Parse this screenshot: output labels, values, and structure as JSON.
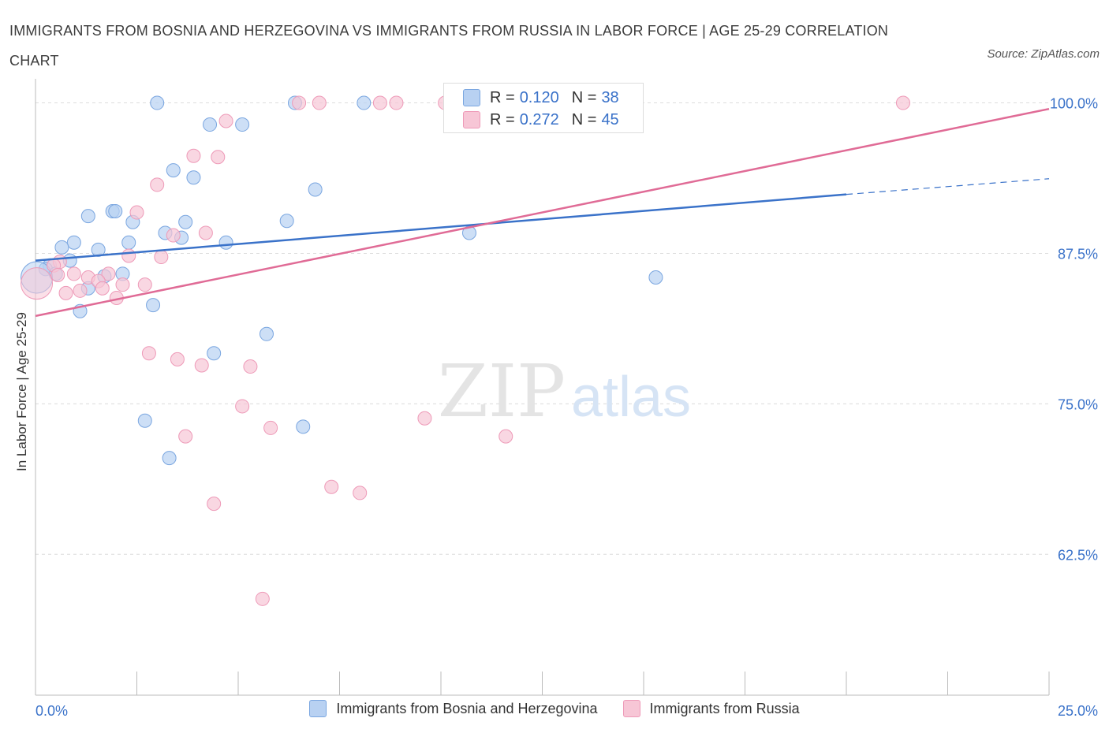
{
  "title": "IMMIGRANTS FROM BOSNIA AND HERZEGOVINA VS IMMIGRANTS FROM RUSSIA IN LABOR FORCE | AGE 25-29 CORRELATION CHART",
  "source": "Source: ZipAtlas.com",
  "watermark": {
    "zip": "ZIP",
    "atlas": "atlas"
  },
  "colors": {
    "blue_fill": "#b8d1f2",
    "blue_stroke": "#7aa6e0",
    "blue_line": "#3a72c9",
    "pink_fill": "#f7c6d6",
    "pink_stroke": "#ee9ab8",
    "pink_line": "#e06b96",
    "axis_label": "#3a72c9",
    "grid": "#dcdcdc"
  },
  "legend": {
    "rows": [
      {
        "r_label": "R =",
        "r_value": "0.120",
        "n_label": "N =",
        "n_value": "38"
      },
      {
        "r_label": "R =",
        "r_value": "0.272",
        "n_label": "N =",
        "n_value": "45"
      }
    ]
  },
  "bottom_legend": [
    "Immigrants from Bosnia and Herzegovina",
    "Immigrants from Russia"
  ],
  "chart_data": {
    "type": "scatter",
    "xlabel": "",
    "ylabel": "In Labor Force | Age 25-29",
    "xlim": [
      0,
      25
    ],
    "ylim": [
      50.8,
      102
    ],
    "x_tick_labels": [
      {
        "value": 0,
        "label": "0.0%"
      },
      {
        "value": 25,
        "label": "25.0%"
      }
    ],
    "y_tick_labels": [
      {
        "value": 100,
        "label": "100.0%"
      },
      {
        "value": 87.5,
        "label": "87.5%"
      },
      {
        "value": 75,
        "label": "75.0%"
      },
      {
        "value": 62.5,
        "label": "62.5%"
      }
    ],
    "grid": true,
    "series": [
      {
        "name": "Immigrants from Bosnia and Herzegovina",
        "trend": {
          "x": [
            0,
            20
          ],
          "y": [
            86.9,
            92.4
          ],
          "extension_x": [
            20,
            25
          ],
          "extension_y": [
            92.4,
            93.7
          ]
        },
        "points": [
          [
            3.0,
            100
          ],
          [
            6.4,
            100
          ],
          [
            8.1,
            100
          ],
          [
            4.3,
            98.2
          ],
          [
            5.1,
            98.2
          ],
          [
            3.4,
            94.4
          ],
          [
            3.9,
            93.8
          ],
          [
            6.9,
            92.8
          ],
          [
            1.3,
            90.6
          ],
          [
            1.9,
            91.0
          ],
          [
            1.97,
            91.0
          ],
          [
            2.4,
            90.1
          ],
          [
            3.7,
            90.1
          ],
          [
            6.2,
            90.2
          ],
          [
            3.2,
            89.2
          ],
          [
            10.7,
            89.2
          ],
          [
            0.95,
            88.4
          ],
          [
            2.3,
            88.4
          ],
          [
            3.6,
            88.8
          ],
          [
            4.7,
            88.4
          ],
          [
            0.65,
            88.0
          ],
          [
            1.55,
            87.8
          ],
          [
            0.85,
            86.9
          ],
          [
            0.35,
            86.5
          ],
          [
            0.25,
            86.2
          ],
          [
            0.5,
            85.8
          ],
          [
            2.15,
            85.8
          ],
          [
            1.7,
            85.6
          ],
          [
            15.3,
            85.5
          ],
          [
            1.3,
            84.6
          ],
          [
            2.9,
            83.2
          ],
          [
            1.1,
            82.7
          ],
          [
            5.7,
            80.8
          ],
          [
            4.4,
            79.2
          ],
          [
            2.7,
            73.6
          ],
          [
            6.6,
            73.1
          ],
          [
            3.3,
            70.5
          ],
          [
            0.03,
            85.5
          ]
        ]
      },
      {
        "name": "Immigrants from Russia",
        "trend": {
          "x": [
            0,
            25
          ],
          "y": [
            82.3,
            99.5
          ]
        },
        "points": [
          [
            6.5,
            100
          ],
          [
            7.0,
            100
          ],
          [
            8.5,
            100
          ],
          [
            8.9,
            100
          ],
          [
            10.1,
            100
          ],
          [
            12.3,
            100
          ],
          [
            12.6,
            100
          ],
          [
            13.7,
            100
          ],
          [
            21.4,
            100
          ],
          [
            4.7,
            98.5
          ],
          [
            3.9,
            95.6
          ],
          [
            4.5,
            95.5
          ],
          [
            3.0,
            93.2
          ],
          [
            2.5,
            90.9
          ],
          [
            4.2,
            89.2
          ],
          [
            3.4,
            89.0
          ],
          [
            2.3,
            87.3
          ],
          [
            3.1,
            87.2
          ],
          [
            0.6,
            86.8
          ],
          [
            0.45,
            86.5
          ],
          [
            0.95,
            85.8
          ],
          [
            0.55,
            85.7
          ],
          [
            1.8,
            85.8
          ],
          [
            1.3,
            85.5
          ],
          [
            1.55,
            85.2
          ],
          [
            2.15,
            84.9
          ],
          [
            2.7,
            84.9
          ],
          [
            1.65,
            84.6
          ],
          [
            1.1,
            84.4
          ],
          [
            0.75,
            84.2
          ],
          [
            2.0,
            83.8
          ],
          [
            2.8,
            79.2
          ],
          [
            3.5,
            78.7
          ],
          [
            4.1,
            78.2
          ],
          [
            5.3,
            78.1
          ],
          [
            5.1,
            74.8
          ],
          [
            5.8,
            73.0
          ],
          [
            9.6,
            73.8
          ],
          [
            3.7,
            72.3
          ],
          [
            11.6,
            72.3
          ],
          [
            7.3,
            68.1
          ],
          [
            8.0,
            67.6
          ],
          [
            4.4,
            66.7
          ],
          [
            5.6,
            58.8
          ],
          [
            0.03,
            85.0
          ]
        ]
      }
    ]
  }
}
